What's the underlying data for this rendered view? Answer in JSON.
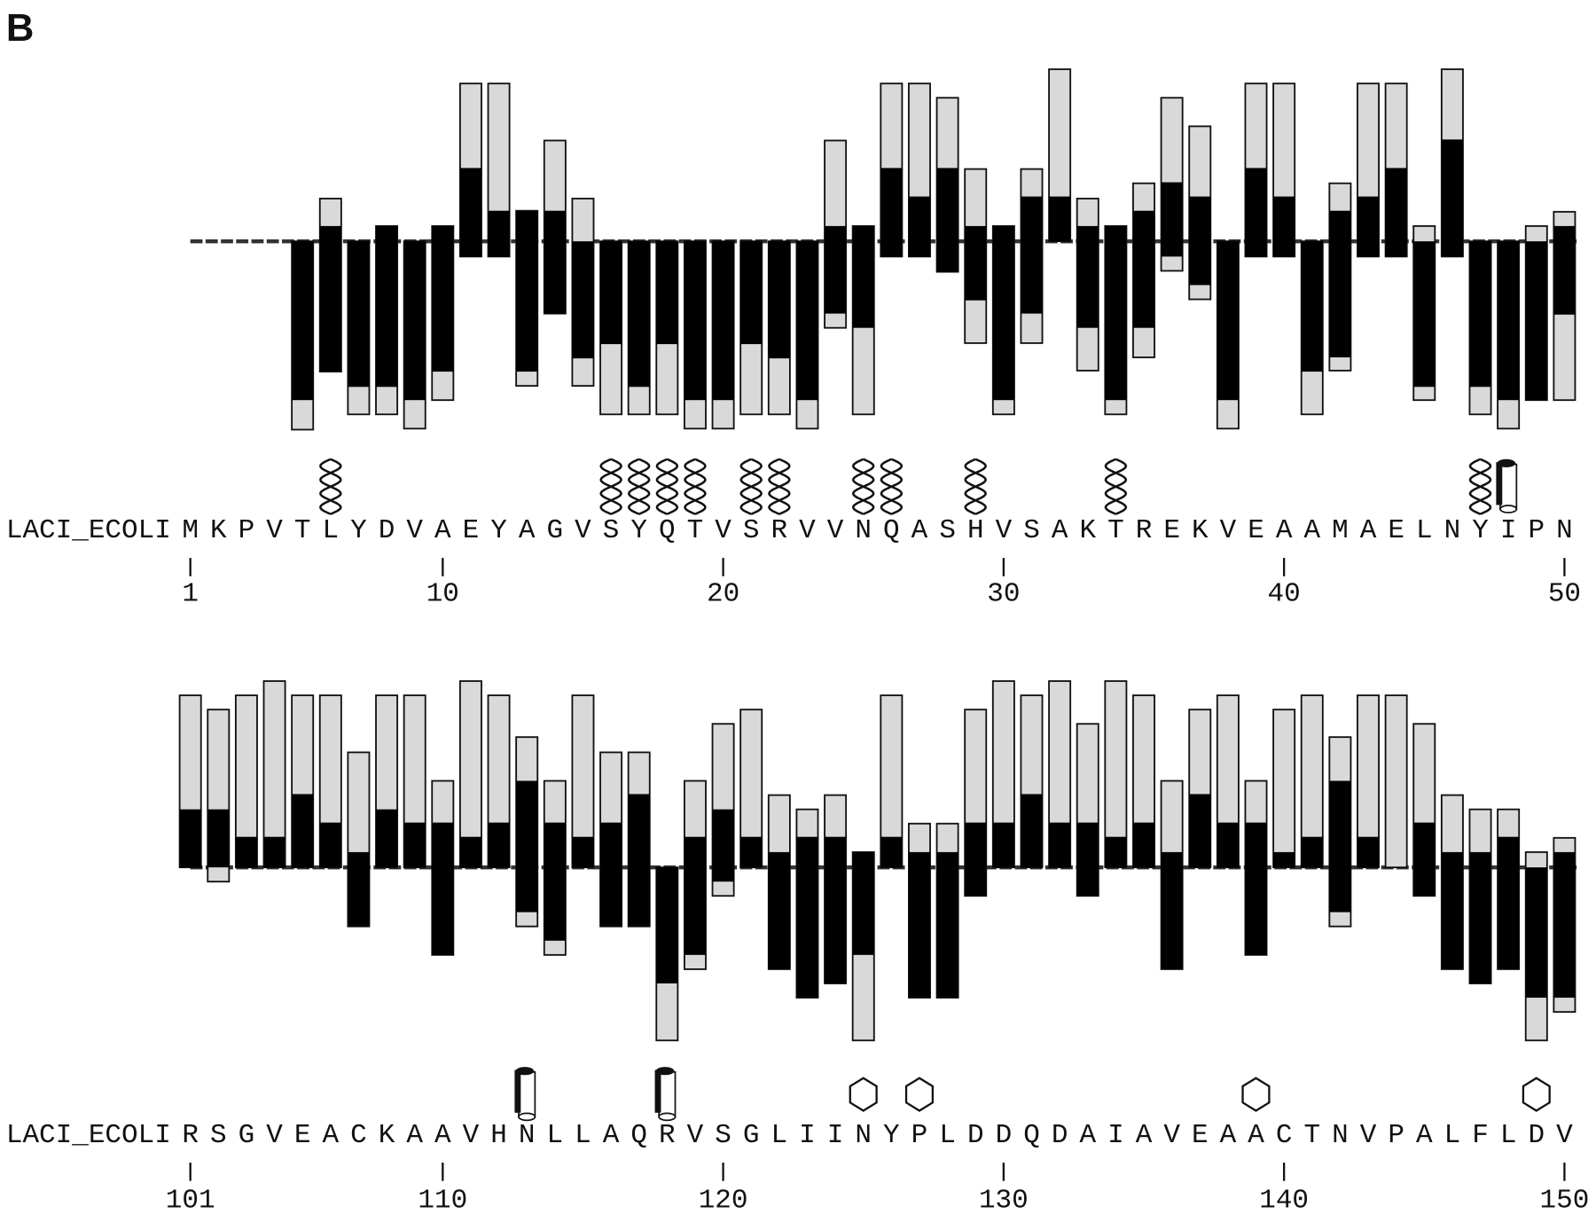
{
  "panel_label": "B",
  "chart_data": [
    {
      "type": "bar",
      "sequence_name": "LACI_ECOLI",
      "categories": [
        "M",
        "K",
        "P",
        "V",
        "T",
        "L",
        "Y",
        "D",
        "V",
        "A",
        "E",
        "Y",
        "A",
        "G",
        "V",
        "S",
        "Y",
        "Q",
        "T",
        "V",
        "S",
        "R",
        "V",
        "V",
        "N",
        "Q",
        "A",
        "S",
        "H",
        "V",
        "S",
        "A",
        "K",
        "T",
        "R",
        "E",
        "K",
        "V",
        "E",
        "A",
        "A",
        "M",
        "A",
        "E",
        "L",
        "N",
        "Y",
        "I",
        "P",
        "N"
      ],
      "xlim": [
        1,
        50
      ],
      "xticks": [
        1,
        10,
        20,
        30,
        40,
        50
      ],
      "ylim": [
        -19,
        17
      ],
      "bar_color": "#d9d9d9",
      "black_color": "#000000",
      "bars": [
        null,
        null,
        null,
        null,
        [
          0,
          -18.5
        ],
        [
          4.2,
          -12.8
        ],
        [
          0,
          -17
        ],
        [
          1.5,
          -17
        ],
        [
          0,
          -18.4
        ],
        [
          1.5,
          -15.6
        ],
        [
          15.5,
          -1.5
        ],
        [
          15.5,
          -1.5
        ],
        [
          3,
          -14.2
        ],
        [
          9.9,
          -7.1
        ],
        [
          4.2,
          -14.2
        ],
        [
          0,
          -17
        ],
        [
          0,
          -17
        ],
        [
          0,
          -17
        ],
        [
          0,
          -18.4
        ],
        [
          0,
          -18.4
        ],
        [
          0,
          -17
        ],
        [
          0,
          -17
        ],
        [
          0,
          -18.4
        ],
        [
          9.9,
          -8.5
        ],
        [
          1.5,
          -17
        ],
        [
          15.5,
          -1.5
        ],
        [
          15.5,
          -1.5
        ],
        [
          14.1,
          -3
        ],
        [
          7.1,
          -10
        ],
        [
          1.5,
          -17
        ],
        [
          7.1,
          -10
        ],
        [
          16.9,
          0
        ],
        [
          4.2,
          -12.7
        ],
        [
          1.5,
          -17
        ],
        [
          5.7,
          -11.4
        ],
        [
          14.1,
          -2.9
        ],
        [
          11.3,
          -5.7
        ],
        [
          0,
          -18.4
        ],
        [
          15.5,
          -1.5
        ],
        [
          15.5,
          -1.5
        ],
        [
          0,
          -17
        ],
        [
          5.7,
          -12.7
        ],
        [
          15.5,
          -1.5
        ],
        [
          15.5,
          -1.5
        ],
        [
          1.5,
          -15.6
        ],
        [
          16.9,
          -1.5
        ],
        [
          0,
          -17
        ],
        [
          0,
          -18.4
        ],
        [
          1.5,
          -15.6
        ],
        [
          2.9,
          -15.6
        ]
      ],
      "black": [
        null,
        null,
        null,
        null,
        [
          0,
          -15.6
        ],
        [
          1.5,
          -12.8
        ],
        [
          0,
          -14.3
        ],
        [
          1.5,
          -14.3
        ],
        [
          0,
          -15.6
        ],
        [
          1.5,
          -12.8
        ],
        [
          7.2,
          -1.5
        ],
        [
          3,
          -1.5
        ],
        [
          3,
          -12.8
        ],
        [
          3,
          -7.1
        ],
        [
          0,
          -11.5
        ],
        [
          0,
          -10.1
        ],
        [
          0,
          -14.3
        ],
        [
          0,
          -10.1
        ],
        [
          0,
          -15.6
        ],
        [
          0,
          -15.6
        ],
        [
          0,
          -10.1
        ],
        [
          0,
          -11.5
        ],
        [
          0,
          -15.6
        ],
        [
          1.5,
          -7.1
        ],
        [
          1.5,
          -8.5
        ],
        [
          7.2,
          -1.5
        ],
        [
          4.4,
          -1.5
        ],
        [
          7.2,
          -3
        ],
        [
          1.5,
          -5.8
        ],
        [
          1.5,
          -15.6
        ],
        [
          4.4,
          -7.1
        ],
        [
          4.4,
          0
        ],
        [
          1.5,
          -8.5
        ],
        [
          1.5,
          -15.6
        ],
        [
          3,
          -8.5
        ],
        [
          5.8,
          -1.5
        ],
        [
          4.4,
          -4.3
        ],
        [
          0,
          -15.6
        ],
        [
          7.2,
          -1.5
        ],
        [
          4.4,
          -1.5
        ],
        [
          0,
          -12.8
        ],
        [
          3,
          -11.4
        ],
        [
          4.4,
          -1.5
        ],
        [
          7.2,
          -1.5
        ],
        [
          0,
          -14.3
        ],
        [
          10,
          -1.5
        ],
        [
          0,
          -14.3
        ],
        [
          0,
          -15.6
        ],
        [
          0,
          -15.6
        ],
        [
          1.5,
          -7.2
        ]
      ],
      "symbols": [
        null,
        null,
        null,
        null,
        null,
        "helix",
        null,
        null,
        null,
        null,
        null,
        null,
        null,
        null,
        null,
        "helix",
        "helix",
        "helix",
        "helix",
        null,
        "helix",
        "helix",
        null,
        null,
        "helix",
        "helix",
        null,
        null,
        "helix",
        null,
        null,
        null,
        null,
        "helix",
        null,
        null,
        null,
        null,
        null,
        null,
        null,
        null,
        null,
        null,
        null,
        null,
        "helix",
        "cylinder",
        null,
        null
      ]
    },
    {
      "type": "bar",
      "sequence_name": "LACI_ECOLI",
      "categories": [
        "R",
        "S",
        "G",
        "V",
        "E",
        "A",
        "C",
        "K",
        "A",
        "A",
        "V",
        "H",
        "N",
        "L",
        "L",
        "A",
        "Q",
        "R",
        "V",
        "S",
        "G",
        "L",
        "I",
        "I",
        "N",
        "Y",
        "P",
        "L",
        "D",
        "D",
        "Q",
        "D",
        "A",
        "I",
        "A",
        "V",
        "E",
        "A",
        "A",
        "C",
        "T",
        "N",
        "V",
        "P",
        "A",
        "L",
        "F",
        "L",
        "D",
        "V"
      ],
      "xlim": [
        101,
        150
      ],
      "xticks": [
        101,
        110,
        120,
        130,
        140,
        150
      ],
      "ylim": [
        -19,
        17
      ],
      "bar_color": "#d9d9d9",
      "black_color": "#000000",
      "bars": [
        [
          16.9,
          0
        ],
        [
          15.5,
          -1.4
        ],
        [
          16.9,
          0
        ],
        [
          18.3,
          0
        ],
        [
          16.9,
          0
        ],
        [
          16.9,
          0
        ],
        [
          11.3,
          -5.8
        ],
        [
          16.9,
          0
        ],
        [
          16.9,
          0
        ],
        [
          8.5,
          -8.6
        ],
        [
          18.3,
          0
        ],
        [
          16.9,
          0
        ],
        [
          12.8,
          -5.8
        ],
        [
          8.5,
          -8.6
        ],
        [
          16.9,
          0
        ],
        [
          11.3,
          -5.8
        ],
        [
          11.3,
          -5.8
        ],
        [
          0,
          -17
        ],
        [
          8.5,
          -10
        ],
        [
          14.1,
          -2.8
        ],
        [
          15.5,
          0
        ],
        [
          7.1,
          -10
        ],
        [
          5.7,
          -12.8
        ],
        [
          7.1,
          -11.4
        ],
        [
          1.5,
          -17
        ],
        [
          16.9,
          0
        ],
        [
          4.3,
          -12.8
        ],
        [
          4.3,
          -12.8
        ],
        [
          15.5,
          -2.8
        ],
        [
          18.3,
          0
        ],
        [
          16.9,
          0
        ],
        [
          18.3,
          0
        ],
        [
          14.1,
          -2.8
        ],
        [
          18.3,
          0
        ],
        [
          16.9,
          0
        ],
        [
          8.5,
          -10
        ],
        [
          15.5,
          0
        ],
        [
          16.9,
          0
        ],
        [
          8.5,
          -8.6
        ],
        [
          15.5,
          0
        ],
        [
          16.9,
          0
        ],
        [
          12.8,
          -5.8
        ],
        [
          16.9,
          0
        ],
        [
          16.9,
          0
        ],
        [
          14.1,
          -2.8
        ],
        [
          7.1,
          -10
        ],
        [
          5.7,
          -11.4
        ],
        [
          5.7,
          -10
        ],
        [
          1.5,
          -17
        ],
        [
          2.9,
          -14.2
        ]
      ],
      "black": [
        [
          5.7,
          0
        ],
        [
          5.7,
          0
        ],
        [
          3,
          0
        ],
        [
          3,
          0
        ],
        [
          7.2,
          0
        ],
        [
          4.4,
          0
        ],
        [
          1.5,
          -5.8
        ],
        [
          5.7,
          0
        ],
        [
          4.4,
          0
        ],
        [
          4.4,
          -8.6
        ],
        [
          3,
          0
        ],
        [
          4.4,
          0
        ],
        [
          8.5,
          -4.4
        ],
        [
          4.4,
          -7.2
        ],
        [
          3,
          0
        ],
        [
          4.4,
          -5.8
        ],
        [
          7.2,
          -5.8
        ],
        [
          0,
          -11.4
        ],
        [
          3,
          -8.6
        ],
        [
          5.7,
          -1.4
        ],
        [
          3,
          0
        ],
        [
          1.5,
          -10
        ],
        [
          3,
          -12.8
        ],
        [
          3,
          -11.4
        ],
        [
          1.5,
          -8.6
        ],
        [
          3,
          0
        ],
        [
          1.5,
          -12.8
        ],
        [
          1.5,
          -12.8
        ],
        [
          4.4,
          -2.8
        ],
        [
          4.4,
          0
        ],
        [
          7.2,
          0
        ],
        [
          4.4,
          0
        ],
        [
          4.4,
          -2.8
        ],
        [
          3,
          0
        ],
        [
          4.4,
          0
        ],
        [
          1.5,
          -10
        ],
        [
          7.2,
          0
        ],
        [
          4.4,
          0
        ],
        [
          4.4,
          -8.6
        ],
        [
          1.5,
          0
        ],
        [
          3,
          0
        ],
        [
          8.5,
          -4.4
        ],
        [
          3,
          0
        ],
        null,
        [
          4.4,
          -2.8
        ],
        [
          1.5,
          -10
        ],
        [
          1.5,
          -11.4
        ],
        [
          3,
          -10
        ],
        [
          0,
          -12.8
        ],
        [
          1.5,
          -12.8
        ]
      ],
      "symbols": [
        null,
        null,
        null,
        null,
        null,
        null,
        null,
        null,
        null,
        null,
        null,
        null,
        "cylinder",
        null,
        null,
        null,
        null,
        "cylinder",
        null,
        null,
        null,
        null,
        null,
        null,
        "hexagon",
        null,
        "hexagon",
        null,
        null,
        null,
        null,
        null,
        null,
        null,
        null,
        null,
        null,
        null,
        "hexagon",
        null,
        null,
        null,
        null,
        null,
        null,
        null,
        null,
        null,
        "hexagon",
        null
      ]
    }
  ]
}
